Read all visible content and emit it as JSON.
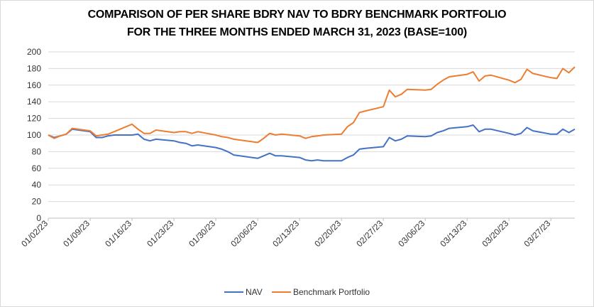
{
  "chart_data": {
    "type": "line",
    "title_line1": "COMPARISON OF PER SHARE BDRY NAV TO BDRY BENCHMARK PORTFOLIO",
    "title_line2": "FOR THE THREE MONTHS ENDED MARCH 31, 2023 (BASE=100)",
    "ylim": [
      0,
      200
    ],
    "y_ticks": [
      0,
      20,
      40,
      60,
      80,
      100,
      120,
      140,
      160,
      180,
      200
    ],
    "x_ticks": [
      "01/02/23",
      "01/09/23",
      "01/16/23",
      "01/23/23",
      "01/30/23",
      "02/06/23",
      "02/13/23",
      "02/20/23",
      "02/27/23",
      "03/06/23",
      "03/13/23",
      "03/20/23",
      "03/27/23"
    ],
    "x_range_days": [
      0,
      88
    ],
    "grid": true,
    "legend_position": "bottom",
    "series": [
      {
        "name": "NAV",
        "color": "#4472C4",
        "points": [
          [
            0,
            100
          ],
          [
            1,
            97
          ],
          [
            2,
            99
          ],
          [
            3,
            101
          ],
          [
            4,
            107
          ],
          [
            7,
            104
          ],
          [
            8,
            97
          ],
          [
            9,
            97
          ],
          [
            10,
            99
          ],
          [
            11,
            100
          ],
          [
            14,
            100
          ],
          [
            15,
            101
          ],
          [
            16,
            95
          ],
          [
            17,
            93
          ],
          [
            18,
            95
          ],
          [
            21,
            93
          ],
          [
            22,
            91
          ],
          [
            23,
            90
          ],
          [
            24,
            87
          ],
          [
            25,
            88
          ],
          [
            28,
            85
          ],
          [
            29,
            83
          ],
          [
            30,
            80
          ],
          [
            31,
            76
          ],
          [
            32,
            75
          ],
          [
            35,
            72
          ],
          [
            36,
            75
          ],
          [
            37,
            78
          ],
          [
            38,
            75
          ],
          [
            39,
            75
          ],
          [
            42,
            73
          ],
          [
            43,
            70
          ],
          [
            44,
            69
          ],
          [
            45,
            70
          ],
          [
            46,
            69
          ],
          [
            49,
            69
          ],
          [
            50,
            73
          ],
          [
            51,
            76
          ],
          [
            52,
            83
          ],
          [
            53,
            84
          ],
          [
            56,
            86
          ],
          [
            57,
            97
          ],
          [
            58,
            93
          ],
          [
            59,
            95
          ],
          [
            60,
            99
          ],
          [
            63,
            98
          ],
          [
            64,
            99
          ],
          [
            65,
            103
          ],
          [
            66,
            105
          ],
          [
            67,
            108
          ],
          [
            70,
            110
          ],
          [
            71,
            112
          ],
          [
            72,
            104
          ],
          [
            73,
            107
          ],
          [
            74,
            107
          ],
          [
            77,
            102
          ],
          [
            78,
            100
          ],
          [
            79,
            102
          ],
          [
            80,
            109
          ],
          [
            81,
            105
          ],
          [
            84,
            101
          ],
          [
            85,
            101
          ],
          [
            86,
            107
          ],
          [
            87,
            103
          ],
          [
            88,
            107
          ]
        ]
      },
      {
        "name": "Benchmark Portfolio",
        "color": "#ED7D31",
        "points": [
          [
            0,
            100
          ],
          [
            1,
            96
          ],
          [
            2,
            99
          ],
          [
            3,
            101
          ],
          [
            4,
            108
          ],
          [
            7,
            105
          ],
          [
            8,
            99
          ],
          [
            9,
            100
          ],
          [
            10,
            101
          ],
          [
            11,
            104
          ],
          [
            14,
            113
          ],
          [
            15,
            107
          ],
          [
            16,
            102
          ],
          [
            17,
            102
          ],
          [
            18,
            106
          ],
          [
            21,
            103
          ],
          [
            22,
            104
          ],
          [
            23,
            104
          ],
          [
            24,
            102
          ],
          [
            25,
            104
          ],
          [
            28,
            100
          ],
          [
            29,
            98
          ],
          [
            30,
            97
          ],
          [
            31,
            95
          ],
          [
            32,
            94
          ],
          [
            35,
            91
          ],
          [
            36,
            96
          ],
          [
            37,
            102
          ],
          [
            38,
            100
          ],
          [
            39,
            101
          ],
          [
            42,
            99
          ],
          [
            43,
            96
          ],
          [
            44,
            98
          ],
          [
            45,
            99
          ],
          [
            46,
            100
          ],
          [
            49,
            101
          ],
          [
            50,
            110
          ],
          [
            51,
            115
          ],
          [
            52,
            127
          ],
          [
            53,
            129
          ],
          [
            56,
            134
          ],
          [
            57,
            154
          ],
          [
            58,
            146
          ],
          [
            59,
            149
          ],
          [
            60,
            155
          ],
          [
            63,
            154
          ],
          [
            64,
            155
          ],
          [
            65,
            161
          ],
          [
            66,
            166
          ],
          [
            67,
            170
          ],
          [
            70,
            173
          ],
          [
            71,
            176
          ],
          [
            72,
            165
          ],
          [
            73,
            171
          ],
          [
            74,
            172
          ],
          [
            77,
            166
          ],
          [
            78,
            163
          ],
          [
            79,
            167
          ],
          [
            80,
            179
          ],
          [
            81,
            174
          ],
          [
            84,
            169
          ],
          [
            85,
            168
          ],
          [
            86,
            180
          ],
          [
            87,
            175
          ],
          [
            88,
            182
          ]
        ]
      }
    ]
  }
}
